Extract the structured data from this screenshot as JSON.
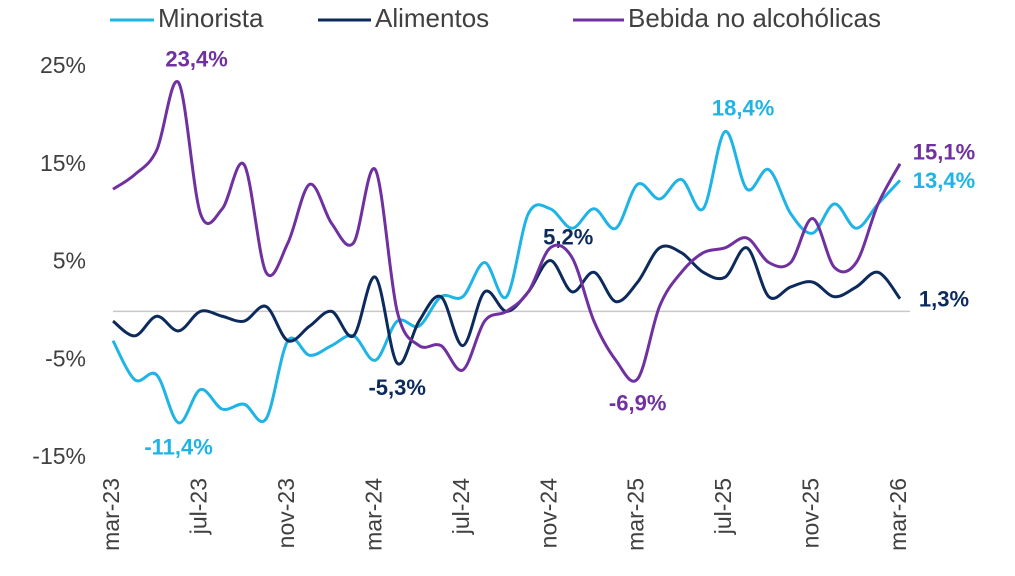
{
  "chart_data": {
    "type": "line",
    "categories": [
      "mar-23",
      null,
      null,
      null,
      "jul-23",
      null,
      null,
      null,
      "nov-23",
      null,
      null,
      null,
      "mar-24",
      null,
      null,
      null,
      "jul-24",
      null,
      null,
      null,
      "nov-24",
      null,
      null,
      null,
      "mar-25",
      null,
      null,
      null,
      "jul-25",
      null,
      null,
      null,
      "nov-25",
      null,
      null,
      null,
      "mar-26"
    ],
    "series": [
      {
        "name": "Minorista",
        "color": "#1fb4e6",
        "values": [
          -3,
          -7,
          -6.5,
          -11.4,
          -8,
          -10,
          -9.5,
          -11,
          -3,
          -4.5,
          -3.5,
          -2.5,
          -5,
          -1,
          -1.5,
          1.5,
          1.5,
          5,
          1.5,
          10,
          10.5,
          8.5,
          10.5,
          8.5,
          13,
          11.5,
          13.5,
          10.5,
          18.4,
          12.5,
          14.5,
          10,
          8,
          11,
          8.5,
          11,
          13.4
        ],
        "value_labels": [
          null,
          null,
          null,
          "-11,4%",
          null,
          null,
          null,
          null,
          null,
          null,
          null,
          null,
          null,
          null,
          null,
          null,
          null,
          null,
          null,
          null,
          null,
          null,
          null,
          null,
          null,
          null,
          null,
          null,
          "18,4%",
          null,
          null,
          null,
          null,
          null,
          null,
          null,
          "13,4%"
        ]
      },
      {
        "name": "Alimentos",
        "color": "#0d2a5c",
        "values": [
          -1,
          -2.5,
          -0.5,
          -2,
          0,
          -0.5,
          -1,
          0.5,
          -3,
          -1.5,
          0,
          -2.5,
          3.5,
          -5.3,
          -1,
          1.5,
          -3.5,
          2,
          0,
          2,
          5.2,
          2,
          4,
          1,
          3,
          6.5,
          6,
          4,
          3.5,
          6.5,
          1.5,
          2.5,
          3,
          1.5,
          2.5,
          4,
          1.3
        ],
        "value_labels": [
          null,
          null,
          null,
          null,
          null,
          null,
          null,
          null,
          null,
          null,
          null,
          null,
          null,
          "-5,3%",
          null,
          null,
          null,
          null,
          null,
          null,
          "5,2%",
          null,
          null,
          null,
          null,
          null,
          null,
          null,
          null,
          null,
          null,
          null,
          null,
          null,
          null,
          null,
          "1,3%"
        ]
      },
      {
        "name": "Bebida no alcohólicas",
        "color": "#7030a0",
        "values": [
          12.5,
          14,
          16.5,
          23.4,
          10,
          10.5,
          15,
          4,
          7,
          13,
          9,
          7,
          14.5,
          0,
          -3.5,
          -3.5,
          -6,
          -1,
          0,
          2,
          6.5,
          5.5,
          -1,
          -5,
          -6.9,
          0.5,
          4,
          6,
          6.5,
          7.5,
          5,
          5,
          9.5,
          4.5,
          5,
          11,
          15.1
        ],
        "value_labels": [
          null,
          null,
          null,
          "23,4%",
          null,
          null,
          null,
          null,
          null,
          null,
          null,
          null,
          null,
          null,
          null,
          null,
          null,
          null,
          null,
          null,
          null,
          null,
          null,
          null,
          "-6,9%",
          null,
          null,
          null,
          null,
          null,
          null,
          null,
          null,
          null,
          null,
          null,
          "15,1%"
        ]
      }
    ],
    "ylim": [
      -15,
      25
    ],
    "yticks": [
      {
        "value": -15,
        "label": "-15%"
      },
      {
        "value": -5,
        "label": "-5%"
      },
      {
        "value": 5,
        "label": "5%"
      },
      {
        "value": 15,
        "label": "15%"
      },
      {
        "value": 25,
        "label": "25%"
      }
    ],
    "hline": 0
  }
}
